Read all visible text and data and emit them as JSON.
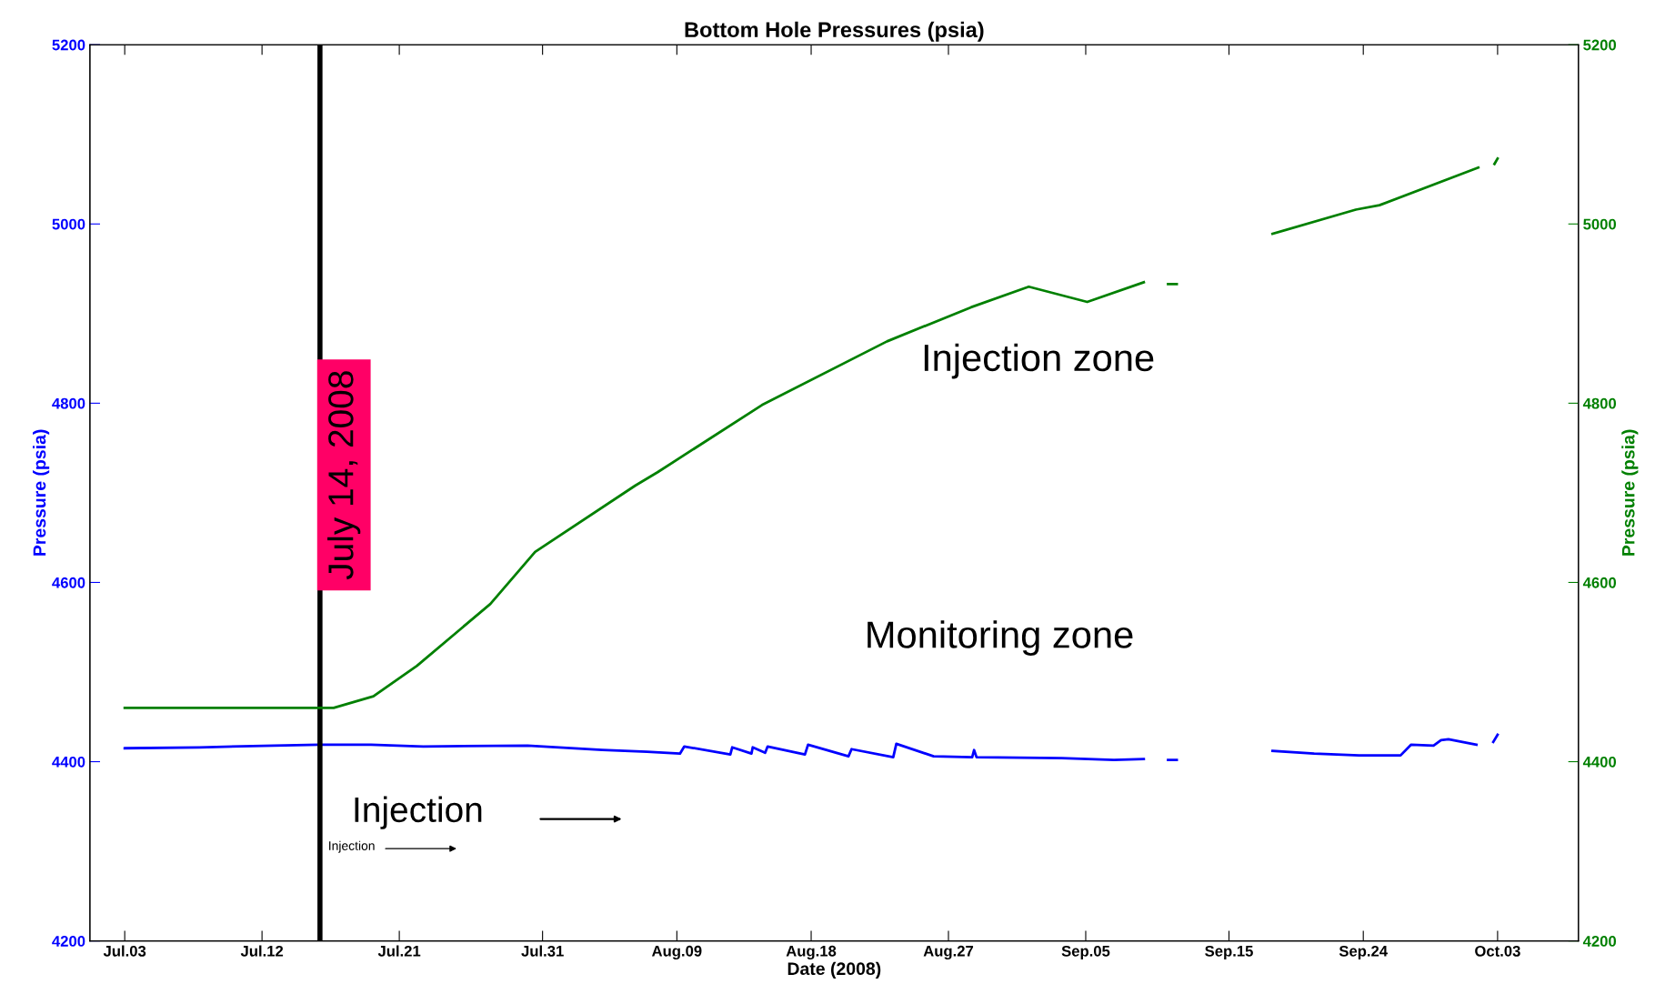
{
  "chart_data": {
    "type": "line",
    "title": "Bottom Hole Pressures (psia)",
    "xlabel": "Date (2008)",
    "ylabel": "Pressure (psia)",
    "y2label": "Pressure (psia)",
    "xlim": [
      "2008-06-30T16:00",
      "2008-10-08T10:00"
    ],
    "xticks": [
      {
        "value": "2008-07-03T00:00",
        "label": "Jul.03"
      },
      {
        "value": "2008-07-12T04:48",
        "label": "Jul.12"
      },
      {
        "value": "2008-07-21T09:36",
        "label": "Jul.21"
      },
      {
        "value": "2008-07-31T00:00",
        "label": "Jul.31"
      },
      {
        "value": "2008-08-09T00:00",
        "label": "Aug.09"
      },
      {
        "value": "2008-08-18T00:00",
        "label": "Aug.18"
      },
      {
        "value": "2008-08-27T04:48",
        "label": "Aug.27"
      },
      {
        "value": "2008-09-05T09:36",
        "label": "Sep.05"
      },
      {
        "value": "2008-09-15T00:00",
        "label": "Sep.15"
      },
      {
        "value": "2008-09-24T00:00",
        "label": "Sep.24"
      },
      {
        "value": "2008-10-03T00:00",
        "label": "Oct.03"
      }
    ],
    "ylim": [
      4200,
      5200
    ],
    "yticks": [
      4200,
      4400,
      4600,
      4800,
      5000,
      5200
    ],
    "y2lim": [
      4200,
      5200
    ],
    "y2ticks": [
      4200,
      4400,
      4600,
      4800,
      5000,
      5200
    ],
    "grid": false,
    "series": [
      {
        "name": "Injection zone",
        "color": "#008000",
        "axis": "y2",
        "x": [
          "2008-07-03",
          "2008-07-17",
          "2008-07-19T16:00",
          "2008-07-22T14:00",
          "2008-07-27T12:00",
          "2008-07-30T12:00",
          "2008-08-06T05:00",
          "2008-08-07T17:00",
          "2008-08-14T17:00",
          "2008-08-23T02:00",
          "2008-08-28T17:00",
          "2008-09-01T14:00",
          "2008-09-05T12:00",
          "2008-09-09T07:00",
          "2008-09-10T02:00",
          "2008-09-10T22:00",
          "2008-09-11T12:00",
          "2008-09-14T00:00",
          "2008-09-17T22:00",
          "2008-09-23T12:00",
          "2008-09-25T02:00",
          "2008-10-01T17:00",
          "2008-10-02T06:00",
          "2008-10-02T19:00",
          "2008-10-03T00:00"
        ],
        "values": [
          4460,
          4460,
          4473,
          4507,
          4576,
          4634,
          4708,
          4723,
          4798,
          4869,
          4907,
          4930,
          4913,
          4935,
          null,
          4933,
          4933,
          null,
          4989,
          5016,
          5021,
          5063,
          null,
          5067,
          5073
        ]
      },
      {
        "name": "Monitoring zone",
        "color": "#0000ff",
        "x": [
          "2008-07-03",
          "2008-07-08",
          "2008-07-13",
          "2008-07-16",
          "2008-07-19T12:00",
          "2008-07-23",
          "2008-07-30",
          "2008-08-04",
          "2008-08-07",
          "2008-08-09T05:00",
          "2008-08-09T12:00",
          "2008-08-12T14:00",
          "2008-08-12T17:00",
          "2008-08-14T00:00",
          "2008-08-14T02:00",
          "2008-08-14T22:00",
          "2008-08-15T02:00",
          "2008-08-17T14:00",
          "2008-08-17T19:00",
          "2008-08-20T12:00",
          "2008-08-20T17:00",
          "2008-08-23T12:00",
          "2008-08-23T17:00",
          "2008-08-26T05:00",
          "2008-08-28T19:00",
          "2008-08-28T22:00",
          "2008-08-29T02:00",
          "2008-09-03T19:00",
          "2008-09-07T07:00",
          "2008-09-09T07:00",
          "2008-09-10T02:00",
          "2008-09-10T22:00",
          "2008-09-11T12:00",
          "2008-09-14T00:00",
          "2008-09-17T22:00",
          "2008-09-20T17:00",
          "2008-09-23T17:00",
          "2008-09-26T12:00",
          "2008-09-27T05:00",
          "2008-09-28T17:00",
          "2008-09-29T05:00",
          "2008-09-29T17:00",
          "2008-10-01T14:00",
          "2008-10-02T06:00",
          "2008-10-02T17:00",
          "2008-10-03T00:00"
        ],
        "values": [
          4415,
          4416,
          4418,
          4419,
          4419,
          4417,
          4418,
          4413,
          4411,
          4409,
          4417,
          4408,
          4416,
          4409,
          4416,
          4410,
          4417,
          4408,
          4419,
          4406,
          4414,
          4405,
          4420,
          4406,
          4405,
          4413,
          4405,
          4404,
          4402,
          4403,
          null,
          4402,
          4402,
          null,
          4412,
          4409,
          4407,
          4407,
          4419,
          4418,
          4424,
          4425,
          4419,
          null,
          4422,
          4430
        ]
      }
    ],
    "ref_lines": [
      {
        "axis": "x",
        "value": "2008-07-16T02:00",
        "label": "July 14, 2008",
        "color": "#000000"
      }
    ],
    "annotations": [
      "Injection",
      "Injection"
    ]
  }
}
